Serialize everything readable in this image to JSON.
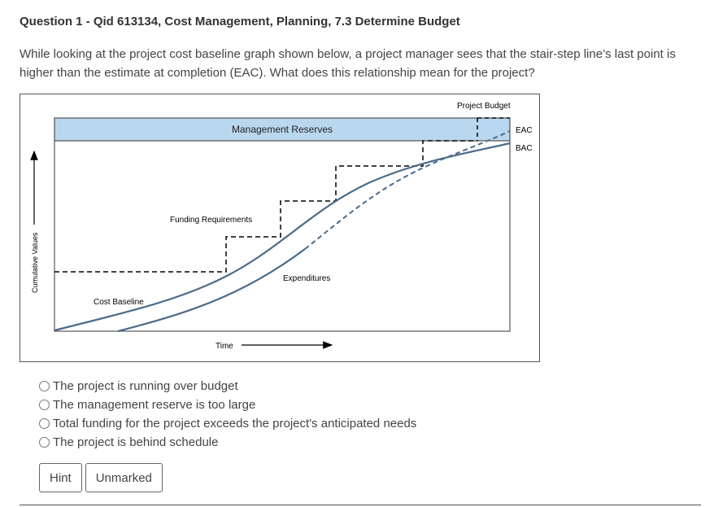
{
  "question": {
    "title": "Question 1 - Qid 613134, Cost Management, Planning, 7.3 Determine Budget",
    "text": "While looking at the project cost baseline graph shown below, a project manager sees that the stair-step line’s last point is higher than the estimate at completion (EAC). What does this relationship mean for the project?"
  },
  "figure": {
    "project_budget_label": "Project Budget",
    "management_reserves_label": "Management Reserves",
    "eac_label": "EAC",
    "bac_label": "BAC",
    "funding_requirements_label": "Funding Requirements",
    "expenditures_label": "Expenditures",
    "cost_baseline_label": "Cost Baseline",
    "y_axis_label": "Cumulative Values",
    "x_axis_label": "Time",
    "colors": {
      "reserve_fill": "#b9d7ee",
      "curve": "#4a6b8a",
      "arrow": "#000000"
    }
  },
  "options": [
    {
      "label": "The project is running over budget",
      "selected": false
    },
    {
      "label": "The management reserve is too large",
      "selected": false
    },
    {
      "label": "Total funding for the project exceeds the project's anticipated needs",
      "selected": false
    },
    {
      "label": "The project is behind schedule",
      "selected": false
    }
  ],
  "buttons": {
    "hint": "Hint",
    "status": "Unmarked"
  }
}
